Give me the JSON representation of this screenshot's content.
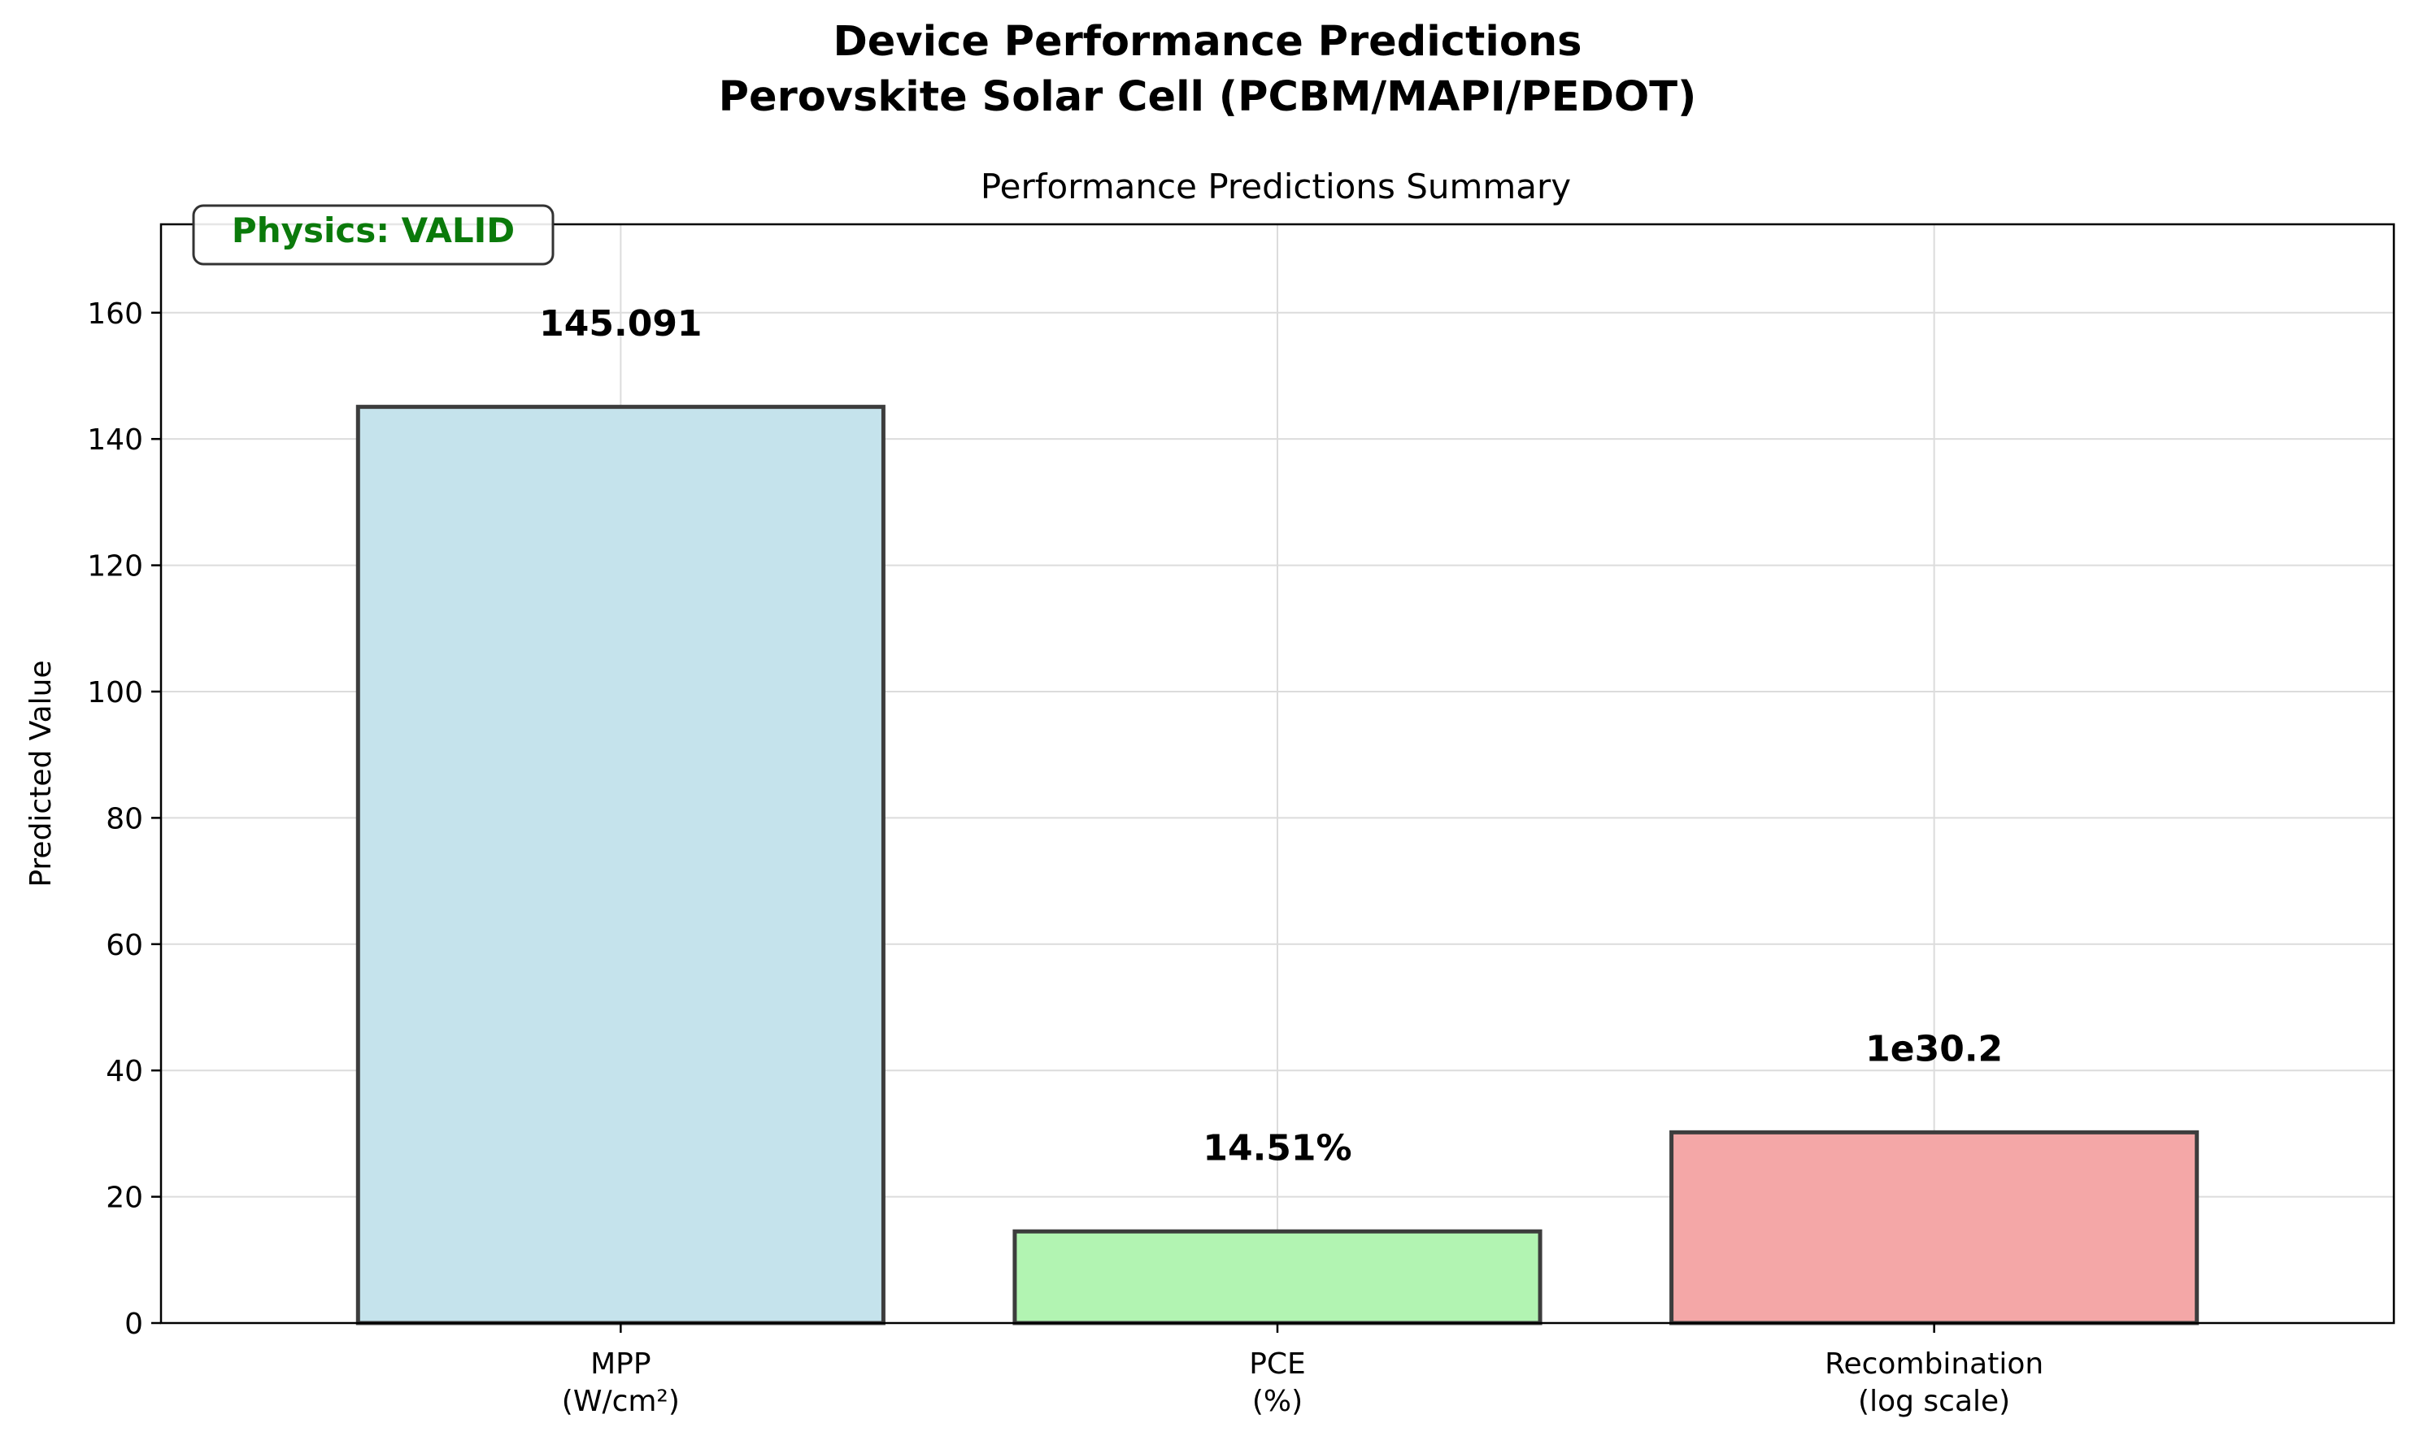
{
  "chart_data": {
    "type": "bar",
    "title": "Device Performance Predictions\nPerovskite Solar Cell (PCBM/MAPI/PEDOT)",
    "title_lines": [
      "Device Performance Predictions",
      "Perovskite Solar Cell (PCBM/MAPI/PEDOT)"
    ],
    "subtitle": "Performance Predictions Summary",
    "xlabel": "",
    "ylabel": "Predicted Value",
    "ylim": [
      0,
      174
    ],
    "yticks": [
      0,
      20,
      40,
      60,
      80,
      100,
      120,
      140,
      160
    ],
    "grid": true,
    "categories": [
      "MPP\n(W/cm²)",
      "PCE\n(%)",
      "Recombination\n(log scale)"
    ],
    "category_lines": [
      [
        "MPP",
        "(W/cm²)"
      ],
      [
        "PCE",
        "(%)"
      ],
      [
        "Recombination",
        "(log scale)"
      ]
    ],
    "values": [
      145.091,
      14.51,
      30.2
    ],
    "data_labels": [
      "145.091",
      "14.51%",
      "1e30.2"
    ],
    "bar_colors": [
      "#c5e3ec",
      "#b2f4b2",
      "#f4a7a7"
    ],
    "bar_edge_color": "#3d3d3d",
    "annotation": {
      "text": "Physics: VALID",
      "color": "#0b7a0b",
      "position": "top-left"
    }
  }
}
